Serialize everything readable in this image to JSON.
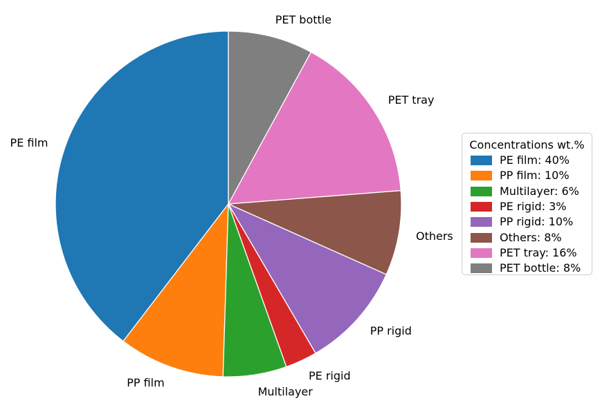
{
  "chart_data": {
    "type": "pie",
    "title": "",
    "legend_title": "Concentrations wt.%",
    "legend_position": "right",
    "categories": [
      "PE film",
      "PP film",
      "Multilayer",
      "PE rigid",
      "PP rigid",
      "Others",
      "PET tray",
      "PET bottle"
    ],
    "values": [
      40,
      10,
      6,
      3,
      10,
      8,
      16,
      8
    ],
    "value_unit": "wt.%",
    "colors": [
      "#1f77b4",
      "#ff7f0e",
      "#2ca02c",
      "#d62728",
      "#9467bd",
      "#8c564b",
      "#e377c2",
      "#7f7f7f"
    ],
    "legend_entries": [
      "PE film: 40%",
      "PP film: 10%",
      "Multilayer: 6%",
      "PE rigid: 3%",
      "PP rigid: 10%",
      "Others: 8%",
      "PET tray: 16%",
      "PET bottle: 8%"
    ],
    "start_angle_deg": 90,
    "direction": "counterclockwise",
    "slice_edge_color": "#ffffff",
    "background_color": "#ffffff",
    "text_color": "#000000"
  }
}
